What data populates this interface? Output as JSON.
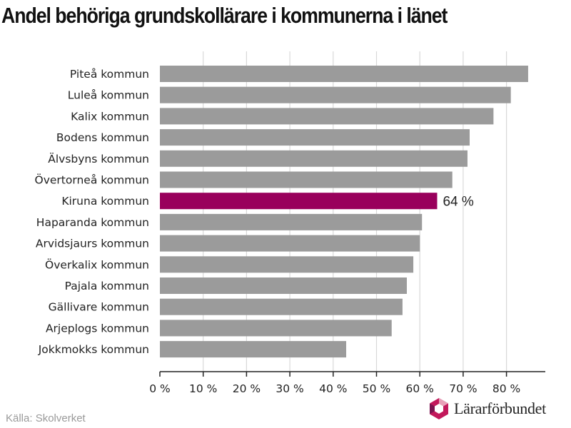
{
  "title": "Andel behöriga grundskollärare i kommunerna i länet",
  "source": "Källa: Skolverket",
  "logo": {
    "text": "Lärarförbundet",
    "icon": "lararforbundet-logo-icon"
  },
  "colors": {
    "bar": "#9b9b9b",
    "highlight": "#99005c",
    "grid": "#d8d8d8",
    "axis": "#222222"
  },
  "chart_data": {
    "type": "bar",
    "orientation": "horizontal",
    "title": "Andel behöriga grundskollärare i kommunerna i länet",
    "categories": [
      "Piteå kommun",
      "Luleå kommun",
      "Kalix kommun",
      "Bodens kommun",
      "Älvsbyns kommun",
      "Övertorneå kommun",
      "Kiruna kommun",
      "Haparanda kommun",
      "Arvidsjaurs kommun",
      "Överkalix kommun",
      "Pajala kommun",
      "Gällivare kommun",
      "Arjeplogs kommun",
      "Jokkmokks kommun"
    ],
    "values": [
      85,
      81,
      77,
      71.5,
      71,
      67.5,
      64,
      60.5,
      60,
      58.5,
      57,
      56,
      53.5,
      43
    ],
    "highlight_index": 6,
    "highlight_label": "64 %",
    "xlim": [
      0,
      89
    ],
    "xticks": [
      0,
      10,
      20,
      30,
      40,
      50,
      60,
      70,
      80
    ],
    "xtick_labels": [
      "0 %",
      "10 %",
      "20 %",
      "30 %",
      "40 %",
      "50 %",
      "60 %",
      "70 %",
      "80 %"
    ],
    "grid": true
  }
}
